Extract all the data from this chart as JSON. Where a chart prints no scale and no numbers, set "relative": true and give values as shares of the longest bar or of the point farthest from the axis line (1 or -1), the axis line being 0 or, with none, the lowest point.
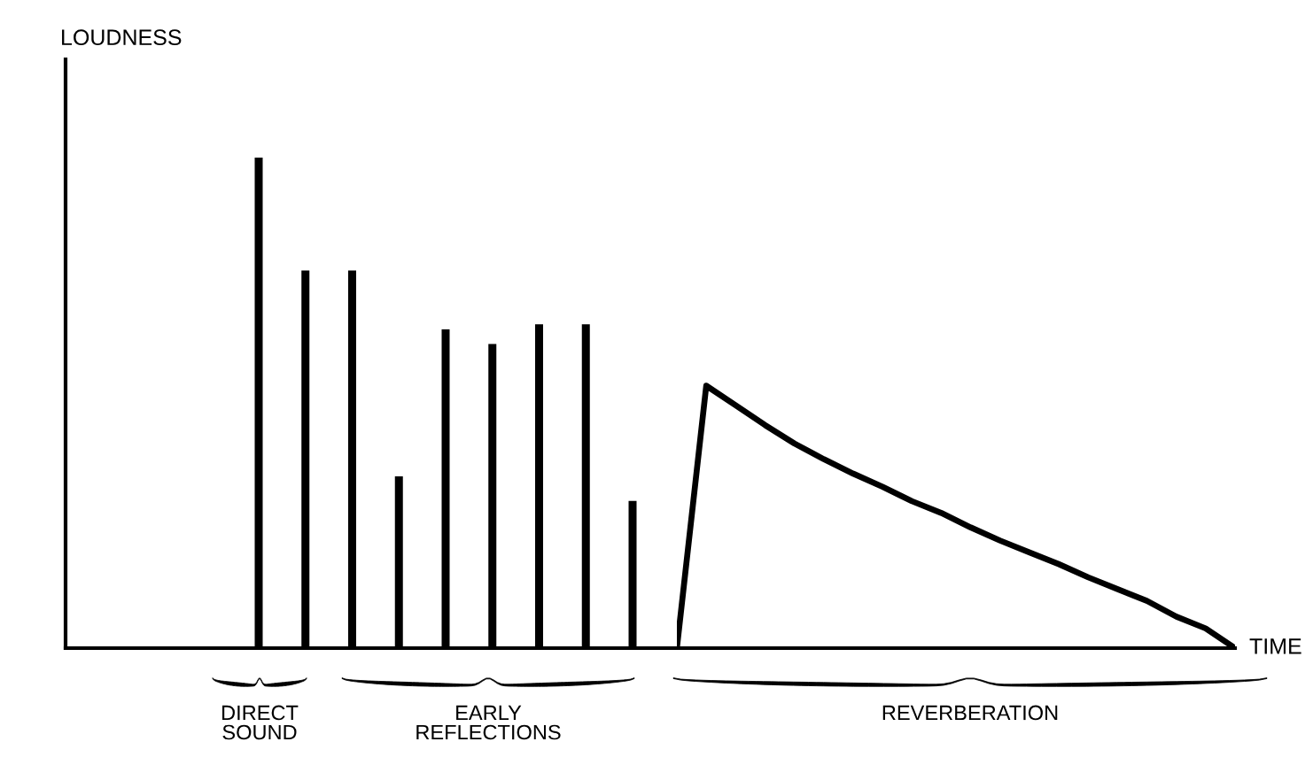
{
  "chart_data": [
    {
      "type": "bar",
      "relative": true,
      "ylabel": "LOUDNESS",
      "tick_labels": false,
      "color": "#000000",
      "categories": [
        null,
        null,
        null,
        null,
        null,
        null,
        null,
        null,
        null
      ],
      "values": [
        1.0,
        0.77,
        0.77,
        0.35,
        0.65,
        0.62,
        0.66,
        0.66,
        0.3
      ],
      "annotations": [
        "DIRECT\nSOUND",
        "EARLY\nREFLECTIONS"
      ]
    },
    {
      "type": "line",
      "relative": true,
      "xlabel": "TIME",
      "tick_labels": false,
      "color": "#000000",
      "categories": [
        null,
        null,
        null,
        null,
        null,
        null,
        null,
        null,
        null,
        null,
        null,
        null,
        null,
        null,
        null,
        null,
        null,
        null,
        null,
        null
      ],
      "values": [
        0,
        1,
        0.925,
        0.85,
        0.78,
        0.72,
        0.665,
        0.615,
        0.56,
        0.515,
        0.46,
        0.41,
        0.365,
        0.32,
        0.27,
        0.225,
        0.18,
        0.12,
        0.075,
        0
      ],
      "annotations": [
        "REVERBERATION"
      ]
    }
  ]
}
